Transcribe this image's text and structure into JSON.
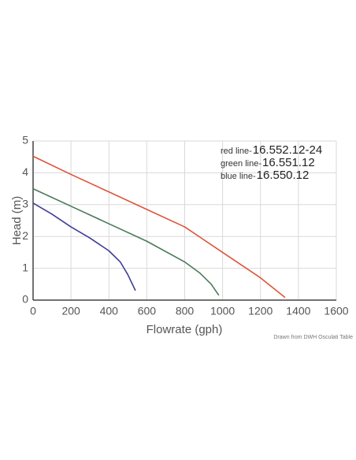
{
  "chart_data": {
    "type": "line",
    "x_label": "Flowrate (gph)",
    "y_label": "Head (m)",
    "xlim": [
      0,
      1600
    ],
    "xticks": [
      0,
      200,
      400,
      600,
      800,
      1000,
      1200,
      1400,
      1600
    ],
    "ylim": [
      0,
      5
    ],
    "yticks": [
      0,
      1,
      2,
      3,
      4,
      5
    ],
    "grid": true,
    "series": [
      {
        "name": "red line-",
        "label": "16.552.12-24",
        "color": "#e0533a",
        "x": [
          0,
          200,
          400,
          600,
          800,
          1000,
          1100,
          1200,
          1330
        ],
        "values": [
          4.52,
          3.95,
          3.4,
          2.85,
          2.3,
          1.5,
          1.1,
          0.7,
          0.08
        ]
      },
      {
        "name": "green line-",
        "label": "16.551.12",
        "color": "#4a7a5a",
        "x": [
          0,
          200,
          400,
          600,
          800,
          880,
          940,
          980
        ],
        "values": [
          3.5,
          2.95,
          2.4,
          1.85,
          1.2,
          0.85,
          0.5,
          0.15
        ]
      },
      {
        "name": "blue line-",
        "label": "16.550.12",
        "color": "#3d3d9a",
        "x": [
          0,
          100,
          200,
          300,
          400,
          460,
          500,
          540
        ],
        "values": [
          3.05,
          2.7,
          2.3,
          1.95,
          1.55,
          1.2,
          0.8,
          0.3
        ]
      }
    ],
    "note": "Drawn from DWH Osculati Table"
  }
}
